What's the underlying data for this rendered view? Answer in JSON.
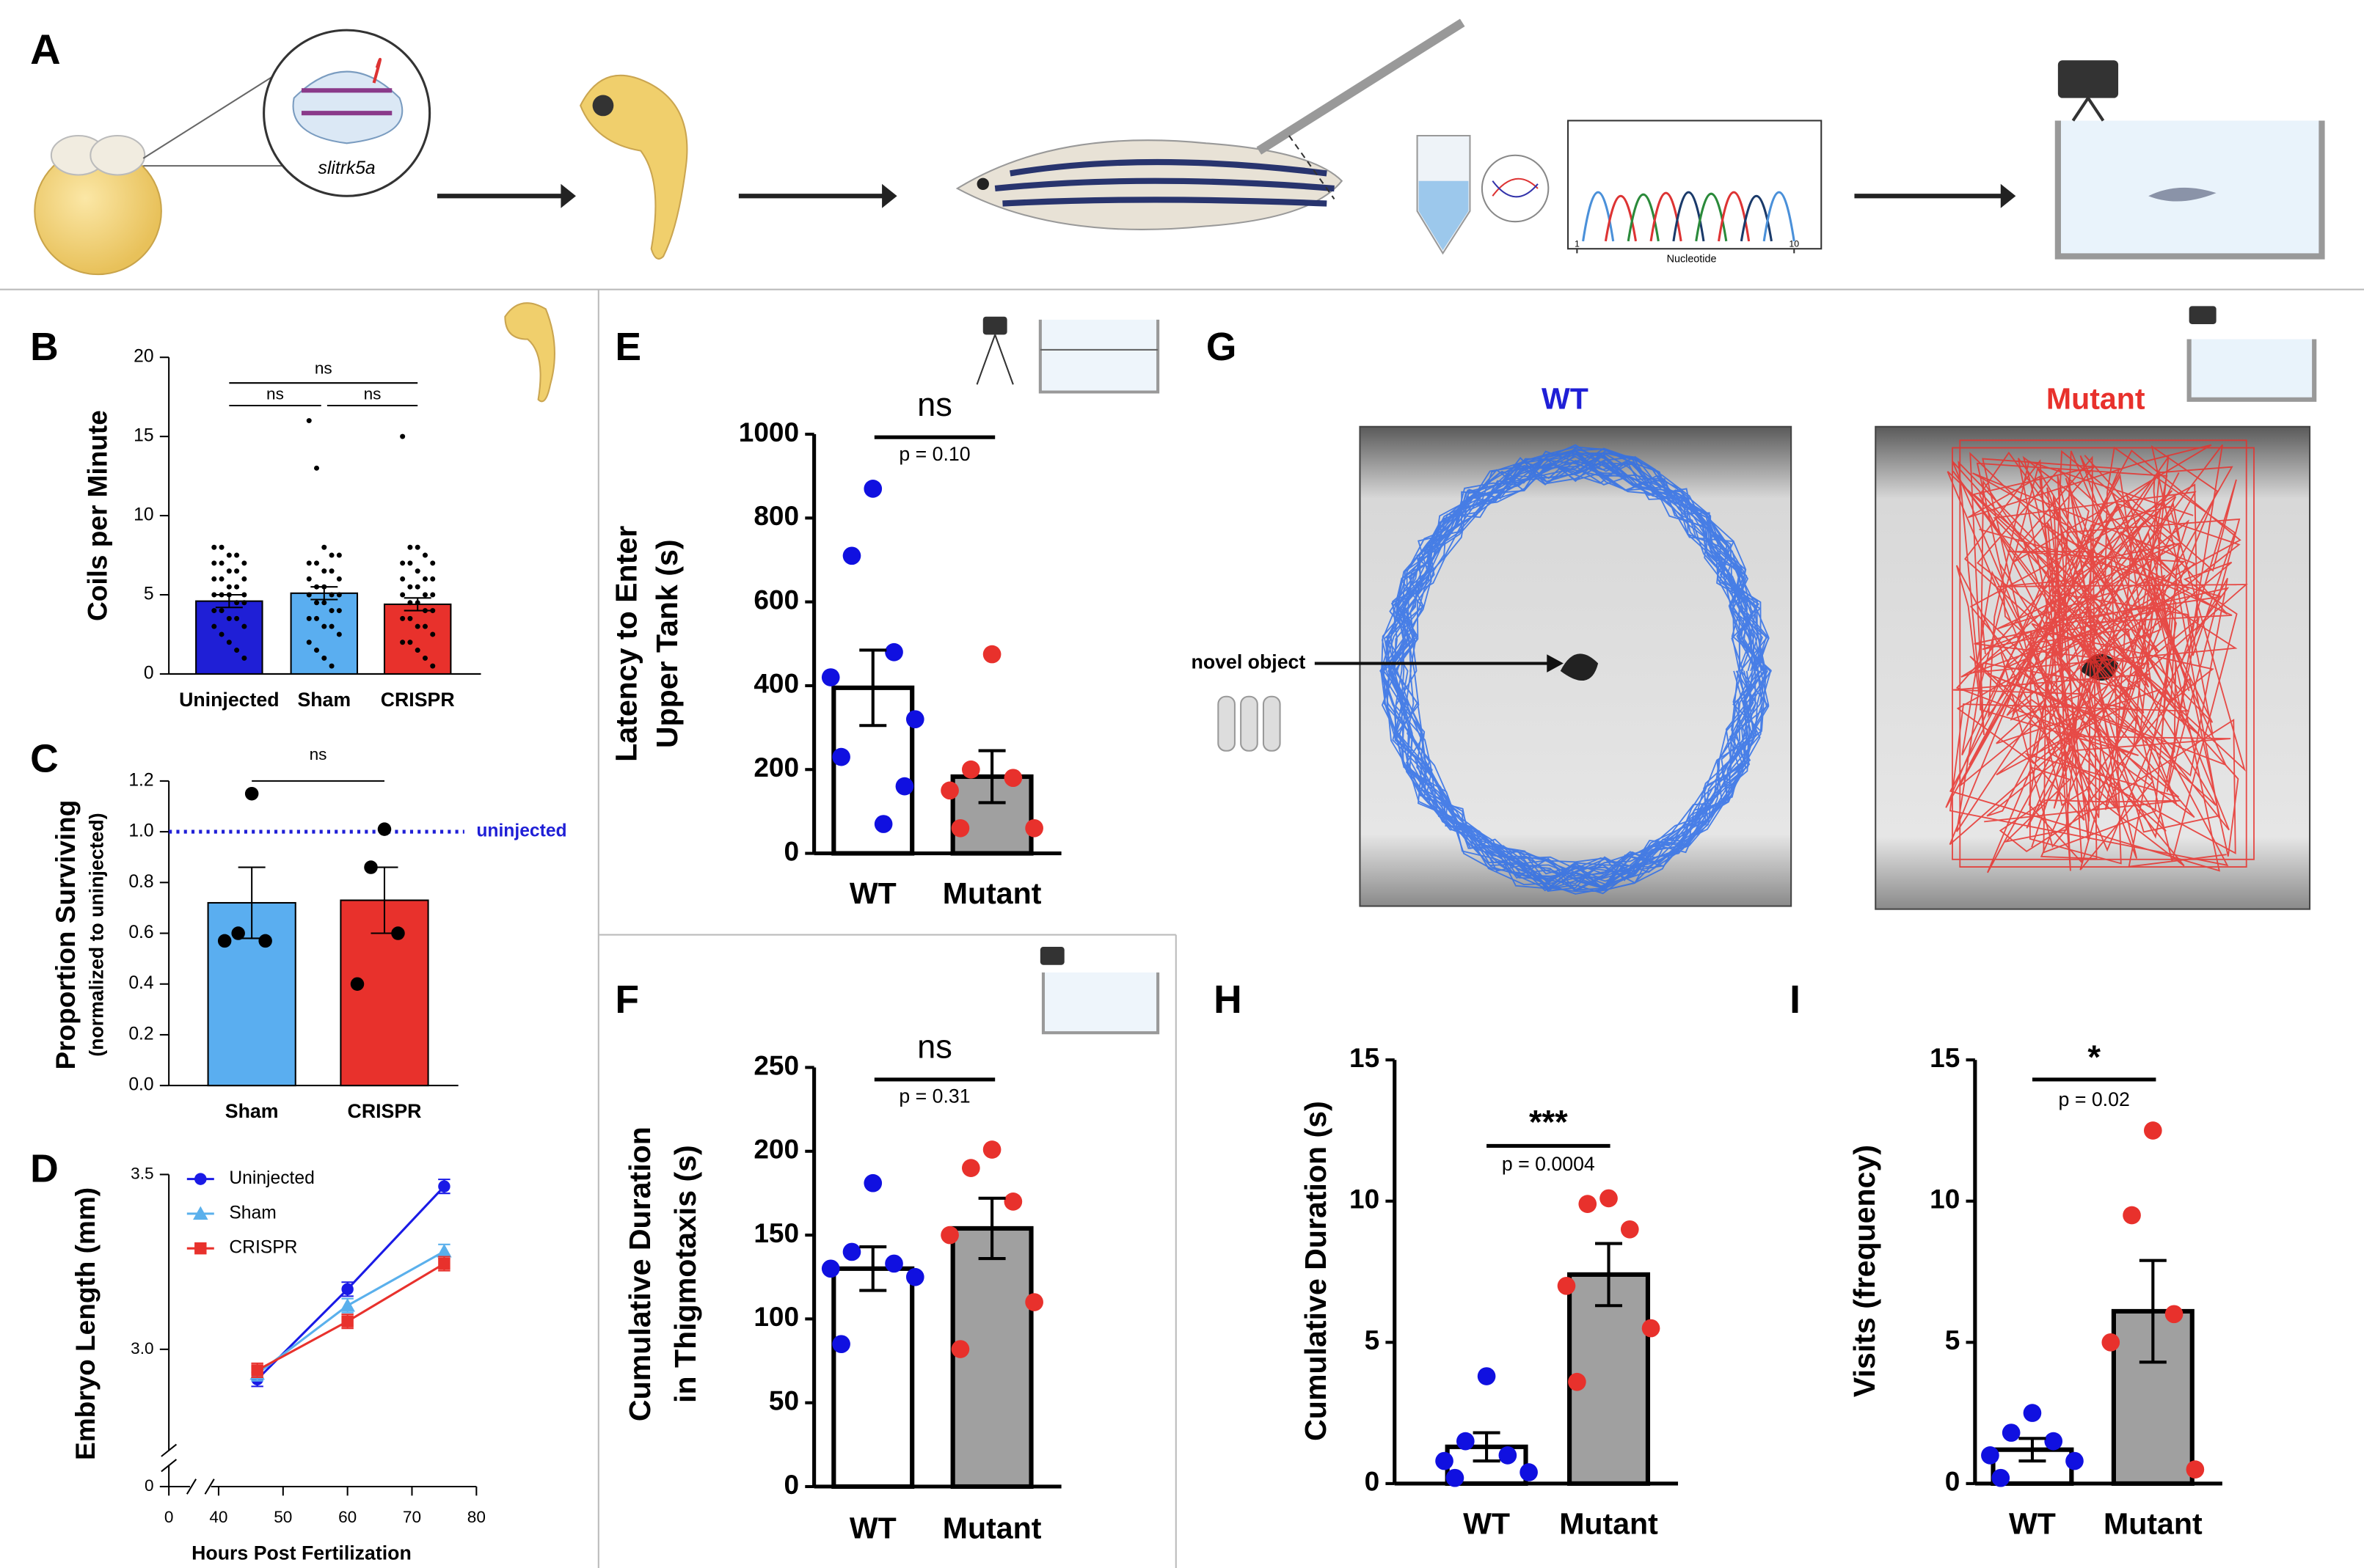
{
  "panel_a": {
    "label": "A",
    "gene": "slitrk5a",
    "chromatogram": {
      "xlabel": "Nucleotide",
      "xticks": [
        1,
        10
      ]
    }
  },
  "panel_g": {
    "label": "G",
    "titles": [
      "WT",
      "Mutant"
    ],
    "annotation": "novel object"
  },
  "chart_data": [
    {
      "panel": "B",
      "type": "bar",
      "ylabel": [
        "Coils per Minute"
      ],
      "categories": [
        "Uninjected",
        "Sham",
        "CRISPR"
      ],
      "values": [
        4.6,
        5.1,
        4.4
      ],
      "errors": [
        0.4,
        0.4,
        0.4
      ],
      "colors": [
        "#1f1fd6",
        "#5aaef0",
        "#e8312c"
      ],
      "point_colors": [
        "#000000",
        "#000000",
        "#000000"
      ],
      "points": [
        [
          8,
          8,
          7.5,
          7.5,
          7,
          7,
          7,
          6.5,
          6.5,
          6,
          6,
          6,
          5.5,
          5.5,
          5,
          5,
          5,
          5,
          4.5,
          4.5,
          4,
          4,
          3.5,
          3.5,
          3,
          3,
          2.5,
          2,
          1.5,
          1
        ],
        [
          16,
          13,
          8,
          7.5,
          7.5,
          7,
          7,
          6.5,
          6.5,
          6,
          6,
          5.5,
          5.5,
          5,
          5,
          5,
          4.5,
          4.5,
          4,
          4,
          3.5,
          3.5,
          3,
          3,
          2.5,
          2,
          1.5,
          1,
          0.5
        ],
        [
          15,
          8,
          8,
          7.5,
          7,
          7,
          7,
          6.5,
          6,
          6,
          6,
          5.5,
          5.5,
          5,
          5,
          5,
          4.5,
          4.5,
          4,
          4,
          3.5,
          3.5,
          3,
          3,
          2.5,
          2,
          2,
          1.5,
          1,
          0.5
        ]
      ],
      "ylim": [
        0,
        20
      ],
      "yticks": [
        0,
        5,
        10,
        15,
        20
      ],
      "significance": [
        {
          "text": "ns"
        },
        {
          "text": "ns"
        },
        {
          "text": "ns"
        }
      ]
    },
    {
      "panel": "C",
      "type": "bar",
      "ylabel": [
        "Proportion Surviving",
        "(normalized to uninjected)"
      ],
      "categories": [
        "Sham",
        "CRISPR"
      ],
      "values": [
        0.72,
        0.73
      ],
      "errors": [
        0.14,
        0.13
      ],
      "colors": [
        "#5aaef0",
        "#e8312c"
      ],
      "point_colors": [
        "#000000",
        "#000000"
      ],
      "points": [
        [
          1.15,
          0.6,
          0.57,
          0.57
        ],
        [
          1.01,
          0.86,
          0.6,
          0.4
        ]
      ],
      "ylim": [
        0,
        1.2
      ],
      "yticks": [
        {
          "value": 0,
          "label": "0.0"
        },
        0.2,
        0.4,
        0.6,
        0.8,
        {
          "value": 1,
          "label": "1.0"
        },
        1.2
      ],
      "reference_line": 1,
      "reference_label": "uninjected",
      "reference_color": "#1f1fd6",
      "significance": [
        {
          "text": "ns"
        }
      ]
    },
    {
      "panel": "D",
      "type": "line",
      "ylabel": [
        "Embryo Length (mm)"
      ],
      "xlabel": "Hours Post Fertilization",
      "x": [
        46,
        60,
        75
      ],
      "series": [
        {
          "name": "Uninjected",
          "color": "#1a1ae6",
          "marker": "circle",
          "values": [
            2.914,
            3.172,
            3.466
          ],
          "errors": [
            0.02,
            0.02,
            0.02
          ]
        },
        {
          "name": "Sham",
          "color": "#5ab0ec",
          "marker": "triangle",
          "values": [
            2.93,
            3.125,
            3.28
          ],
          "errors": [
            0.02,
            0.02,
            0.02
          ]
        },
        {
          "name": "CRISPR",
          "color": "#e8312c",
          "marker": "square",
          "values": [
            2.94,
            3.08,
            3.245
          ],
          "errors": [
            0.02,
            0.02,
            0.02
          ]
        }
      ],
      "xlim": [
        40,
        80
      ],
      "xticks": [
        0,
        40,
        50,
        60,
        70,
        80
      ],
      "ylim": [
        2.685,
        3.5
      ],
      "yticks": [
        0,
        {
          "value": 3,
          "label": "3.0"
        },
        3.5
      ],
      "axis_break": true
    },
    {
      "panel": "E",
      "type": "bar",
      "ylabel": [
        "Latency to Enter",
        "Upper Tank (s)"
      ],
      "categories": [
        "WT",
        "Mutant"
      ],
      "values": [
        395,
        183
      ],
      "errors": [
        90,
        62
      ],
      "colors": [
        "#ffffff",
        "#a0a0a0"
      ],
      "point_colors": [
        "#1010e0",
        "#e8312c"
      ],
      "points": [
        [
          870,
          710,
          480,
          420,
          320,
          230,
          160,
          70
        ],
        [
          475,
          200,
          180,
          150,
          60,
          60
        ]
      ],
      "ylim": [
        0,
        1000
      ],
      "yticks": [
        0,
        200,
        400,
        600,
        800,
        1000
      ],
      "significance": [
        {
          "text": "ns",
          "p": "p = 0.10"
        }
      ]
    },
    {
      "panel": "F",
      "type": "bar",
      "ylabel": [
        "Cumulative Duration",
        "in Thigmotaxis (s)"
      ],
      "categories": [
        "WT",
        "Mutant"
      ],
      "values": [
        130,
        154
      ],
      "errors": [
        13,
        18
      ],
      "colors": [
        "#ffffff",
        "#a0a0a0"
      ],
      "point_colors": [
        "#1010e0",
        "#e8312c"
      ],
      "points": [
        [
          181,
          140,
          133,
          130,
          125,
          85
        ],
        [
          201,
          190,
          170,
          150,
          110,
          82
        ]
      ],
      "ylim": [
        0,
        250
      ],
      "yticks": [
        0,
        50,
        100,
        150,
        200,
        250
      ],
      "significance": [
        {
          "text": "ns",
          "p": "p = 0.31"
        }
      ]
    },
    {
      "panel": "H",
      "type": "bar",
      "ylabel": [
        "Cumulative Duration (s)"
      ],
      "categories": [
        "WT",
        "Mutant"
      ],
      "values": [
        1.3,
        7.4
      ],
      "errors": [
        0.5,
        1.1
      ],
      "colors": [
        "#ffffff",
        "#a0a0a0"
      ],
      "point_colors": [
        "#1010e0",
        "#e8312c"
      ],
      "points": [
        [
          3.8,
          1.5,
          1,
          0.8,
          0.4,
          0.2
        ],
        [
          10.1,
          9.9,
          9,
          7,
          5.5,
          3.6
        ]
      ],
      "ylim": [
        0,
        15
      ],
      "yticks": [
        0,
        5,
        10,
        15
      ],
      "significance": [
        {
          "text": "***",
          "p": "p = 0.0004"
        }
      ]
    },
    {
      "panel": "I",
      "type": "bar",
      "ylabel": [
        "Visits (frequency)"
      ],
      "categories": [
        "WT",
        "Mutant"
      ],
      "values": [
        1.2,
        6.1
      ],
      "errors": [
        0.4,
        1.8
      ],
      "colors": [
        "#ffffff",
        "#a0a0a0"
      ],
      "point_colors": [
        "#1010e0",
        "#e8312c"
      ],
      "points": [
        [
          2.5,
          1.8,
          1.5,
          1,
          0.8,
          0.2
        ],
        [
          12.5,
          9.5,
          6,
          5,
          0.5
        ]
      ],
      "ylim": [
        0,
        15
      ],
      "yticks": [
        0,
        5,
        10,
        15
      ],
      "significance": [
        {
          "text": "*",
          "p": "p = 0.02"
        }
      ]
    }
  ]
}
